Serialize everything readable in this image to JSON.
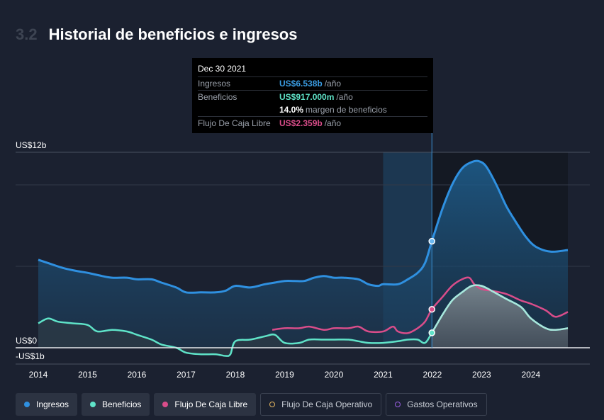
{
  "header": {
    "section_number": "3.2",
    "title": "Historial de beneficios e ingresos"
  },
  "tooltip": {
    "date": "Dec 30 2021",
    "rows": [
      {
        "label": "Ingresos",
        "value": "US$6.538b",
        "unit": "/año",
        "color": "#3a9be0"
      },
      {
        "label": "Beneficios",
        "value": "US$917.000m",
        "unit": "/año",
        "color": "#5fe3c8"
      },
      {
        "label": "",
        "value": "14.0%",
        "unit": "margen de beneficios",
        "color": "#ffffff"
      },
      {
        "label": "Flujo De Caja Libre",
        "value": "US$2.359b",
        "unit": "/año",
        "color": "#d94d8a"
      }
    ]
  },
  "legend": [
    {
      "label": "Ingresos",
      "color": "#2f90e0",
      "active": true,
      "icon": "filled-dot-icon"
    },
    {
      "label": "Beneficios",
      "color": "#5fe3c8",
      "active": true,
      "icon": "filled-dot-icon"
    },
    {
      "label": "Flujo De Caja Libre",
      "color": "#d94d8a",
      "active": true,
      "icon": "filled-dot-icon"
    },
    {
      "label": "Flujo De Caja Operativo",
      "color": "#e3b55f",
      "active": false,
      "icon": "hollow-dot-icon"
    },
    {
      "label": "Gastos Operativos",
      "color": "#9a5fe3",
      "active": false,
      "icon": "hollow-dot-icon"
    }
  ],
  "chart_data": {
    "type": "area",
    "y_tick_labels": [
      "US$12b",
      "US$0",
      "-US$1b"
    ],
    "y_tick_values": [
      12,
      0,
      -1
    ],
    "ylim": [
      -1,
      12
    ],
    "x_tick_labels": [
      "2014",
      "2015",
      "2016",
      "2017",
      "2018",
      "2019",
      "2020",
      "2021",
      "2022",
      "2023",
      "2024"
    ],
    "xlim": [
      2014,
      2024.75
    ],
    "grid": true,
    "highlight_range": [
      2021.0,
      2021.99
    ],
    "forecast_start": 2021.99,
    "series": [
      {
        "name": "Ingresos",
        "color": "#2f90e0",
        "x": [
          2014.0,
          2014.2,
          2014.5,
          2014.8,
          2015.0,
          2015.3,
          2015.5,
          2015.8,
          2016.0,
          2016.3,
          2016.5,
          2016.8,
          2017.0,
          2017.3,
          2017.6,
          2017.8,
          2018.0,
          2018.3,
          2018.6,
          2018.8,
          2019.0,
          2019.2,
          2019.4,
          2019.6,
          2019.8,
          2020.0,
          2020.2,
          2020.5,
          2020.7,
          2020.9,
          2021.0,
          2021.3,
          2021.5,
          2021.7,
          2021.85,
          2021.99,
          2022.2,
          2022.4,
          2022.6,
          2022.8,
          2022.95,
          2023.1,
          2023.3,
          2023.5,
          2023.7,
          2023.9,
          2024.1,
          2024.4,
          2024.75
        ],
        "y": [
          5.4,
          5.2,
          4.9,
          4.7,
          4.6,
          4.4,
          4.3,
          4.3,
          4.2,
          4.2,
          4.0,
          3.7,
          3.4,
          3.4,
          3.4,
          3.5,
          3.8,
          3.7,
          3.9,
          4.0,
          4.1,
          4.1,
          4.1,
          4.3,
          4.4,
          4.3,
          4.3,
          4.2,
          3.9,
          3.8,
          3.9,
          3.9,
          4.2,
          4.6,
          5.2,
          6.538,
          8.5,
          10.0,
          11.0,
          11.4,
          11.45,
          11.1,
          10.0,
          8.7,
          7.7,
          6.8,
          6.2,
          5.9,
          6.0
        ]
      },
      {
        "name": "Beneficios",
        "color": "#5fe3c8",
        "x": [
          2014.0,
          2014.2,
          2014.4,
          2014.7,
          2015.0,
          2015.2,
          2015.5,
          2015.8,
          2016.0,
          2016.3,
          2016.5,
          2016.8,
          2017.0,
          2017.3,
          2017.6,
          2017.8,
          2017.9,
          2018.0,
          2018.3,
          2018.6,
          2018.8,
          2019.0,
          2019.3,
          2019.5,
          2019.8,
          2020.0,
          2020.3,
          2020.5,
          2020.7,
          2021.0,
          2021.3,
          2021.5,
          2021.7,
          2021.85,
          2021.99,
          2022.2,
          2022.4,
          2022.6,
          2022.8,
          2023.0,
          2023.2,
          2023.5,
          2023.8,
          2024.0,
          2024.3,
          2024.5,
          2024.75
        ],
        "y": [
          1.5,
          1.8,
          1.6,
          1.5,
          1.4,
          1.0,
          1.1,
          1.0,
          0.8,
          0.5,
          0.2,
          0.0,
          -0.3,
          -0.4,
          -0.4,
          -0.5,
          -0.4,
          0.4,
          0.5,
          0.7,
          0.8,
          0.3,
          0.3,
          0.5,
          0.5,
          0.5,
          0.5,
          0.4,
          0.3,
          0.3,
          0.4,
          0.5,
          0.5,
          0.3,
          0.917,
          2.0,
          2.9,
          3.4,
          3.8,
          3.8,
          3.5,
          3.0,
          2.5,
          1.8,
          1.2,
          1.1,
          1.2
        ]
      },
      {
        "name": "Flujo De Caja Libre",
        "color": "#d94d8a",
        "x": [
          2018.75,
          2019.0,
          2019.3,
          2019.5,
          2019.8,
          2020.0,
          2020.3,
          2020.5,
          2020.7,
          2021.0,
          2021.2,
          2021.3,
          2021.5,
          2021.7,
          2021.85,
          2021.99,
          2022.2,
          2022.4,
          2022.6,
          2022.75,
          2022.85,
          2023.0,
          2023.2,
          2023.5,
          2023.8,
          2024.0,
          2024.3,
          2024.5,
          2024.75
        ],
        "y": [
          1.1,
          1.2,
          1.2,
          1.3,
          1.1,
          1.2,
          1.2,
          1.3,
          1.0,
          1.0,
          1.3,
          1.0,
          0.9,
          1.2,
          1.6,
          2.359,
          3.1,
          3.8,
          4.2,
          4.3,
          3.9,
          3.6,
          3.5,
          3.3,
          2.9,
          2.7,
          2.3,
          1.9,
          2.2
        ]
      }
    ],
    "tooltip_x": 2021.99
  }
}
